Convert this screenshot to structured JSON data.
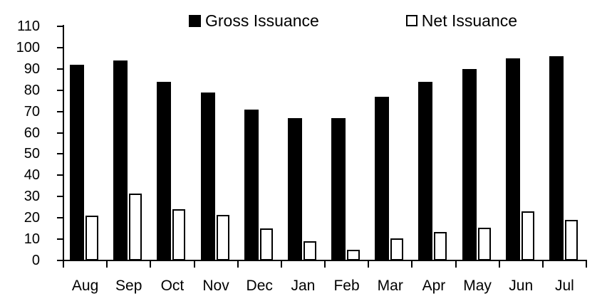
{
  "chart_data": {
    "type": "bar",
    "title": "",
    "xlabel": "",
    "ylabel": "",
    "categories": [
      "Aug",
      "Sep",
      "Oct",
      "Nov",
      "Dec",
      "Jan",
      "Feb",
      "Mar",
      "Apr",
      "May",
      "Jun",
      "Jul"
    ],
    "series": [
      {
        "name": "Gross Issuance",
        "style": "filled",
        "fill": "#000000",
        "values": [
          92,
          94,
          84,
          79,
          71,
          67,
          67,
          77,
          84,
          90,
          95,
          96
        ]
      },
      {
        "name": "Net Issuance",
        "style": "hollow",
        "fill": "#ffffff",
        "border": "#000000",
        "values": [
          21,
          31.5,
          24,
          21.5,
          15,
          9,
          5,
          10.5,
          13.5,
          15.5,
          23,
          19
        ]
      }
    ],
    "ylim": [
      0,
      110
    ],
    "yticks": [
      0,
      10,
      20,
      30,
      40,
      50,
      60,
      70,
      80,
      90,
      100,
      110
    ],
    "grid": false,
    "legend_position": "top",
    "axis_color": "#000000",
    "background": "#ffffff"
  }
}
